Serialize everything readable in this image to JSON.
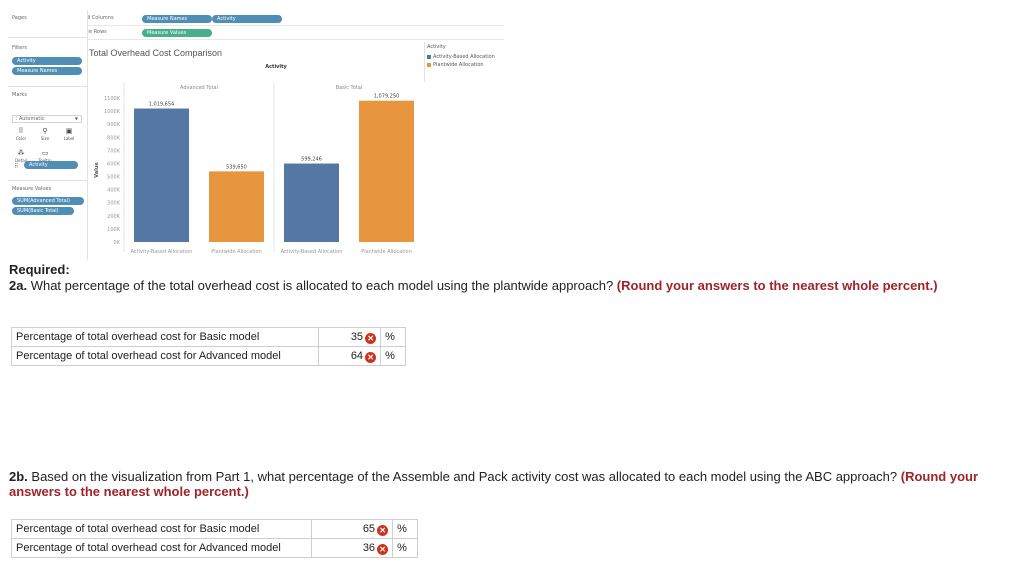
{
  "tableau": {
    "pages_label": "Pages",
    "columns_label": "Columns",
    "rows_label": "Rows",
    "columns_pills": [
      "Measure Names",
      "Activity"
    ],
    "rows_pills": [
      "Measure Values"
    ],
    "filters_label": "Filters",
    "filter_pills": [
      "Activity",
      "Measure Names"
    ],
    "marks_label": "Marks",
    "marks_type": "Automatic",
    "mark_buttons": [
      "Color",
      "Size",
      "Label",
      "Detail",
      "Tooltip"
    ],
    "marks_pill": "Activity",
    "measure_values_label": "Measure Values",
    "measure_pills": [
      "SUM(Advanced Total)",
      "SUM(Basic Total)"
    ],
    "legend": {
      "title": "Activity",
      "items": [
        {
          "label": "Activity-Based Allocation",
          "color": "#5577a3"
        },
        {
          "label": "Plantwide Allocation",
          "color": "#e89540"
        }
      ]
    }
  },
  "chart_data": {
    "type": "bar",
    "title": "Total Overhead Cost Comparison",
    "column_header": "Activity",
    "panes": [
      "Advanced Total",
      "Basic Total"
    ],
    "categories": [
      "Activity-Based Allocation",
      "Plantwide Allocation",
      "Activity-Based Allocation",
      "Plantwide Allocation"
    ],
    "values": [
      1019654,
      539650,
      599246,
      1079250
    ],
    "data_labels": [
      "1,019,654",
      "539,650",
      "599,246",
      "1,079,250"
    ],
    "colors": [
      "#5577a3",
      "#e89540",
      "#5577a3",
      "#e89540"
    ],
    "ylabel": "Value",
    "yticks": [
      "0K",
      "100K",
      "200K",
      "300K",
      "400K",
      "500K",
      "600K",
      "700K",
      "800K",
      "900K",
      "1000K",
      "1100K"
    ],
    "ylim": [
      0,
      1100000
    ],
    "grid": false
  },
  "question": {
    "required": "Required:",
    "part_2a_label": "2a.",
    "part_2a_text": " What percentage of the total overhead cost is allocated to each model using the plantwide approach? ",
    "part_2a_hint": "(Round your answers to the nearest whole percent.)",
    "part_2b_label": "2b.",
    "part_2b_text": " Based on the visualization from Part 1, what percentage of the Assemble and Pack activity cost was allocated to each model using the ABC approach? ",
    "part_2b_hint": "(Round your answers to the nearest whole percent.)",
    "table_2a": [
      {
        "label": "Percentage of total overhead cost for Basic model",
        "value": "35",
        "unit": "%"
      },
      {
        "label": "Percentage of total overhead cost for Advanced model",
        "value": "64",
        "unit": "%"
      }
    ],
    "table_2b": [
      {
        "label": "Percentage of total overhead cost for Basic model",
        "value": "65",
        "unit": "%"
      },
      {
        "label": "Percentage of total overhead cost for Advanced model",
        "value": "36",
        "unit": "%"
      }
    ],
    "incorrect_mark": "✕"
  }
}
